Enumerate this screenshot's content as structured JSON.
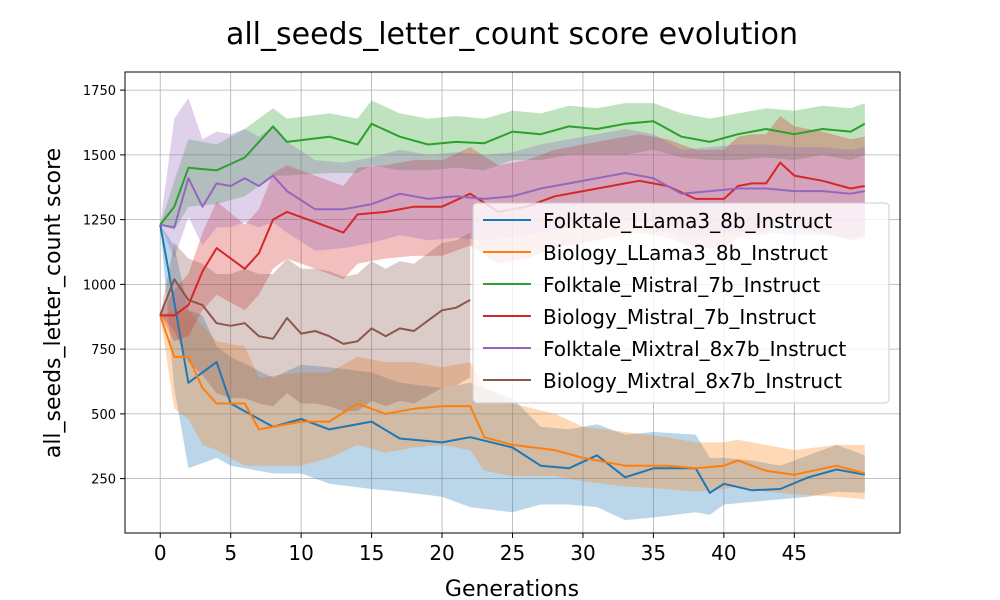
{
  "chart_data": {
    "type": "line",
    "title": "all_seeds_letter_count score evolution",
    "xlabel": "Generations",
    "ylabel": "all_seeds_letter_count score",
    "xlim": [
      -2.5,
      52.5
    ],
    "ylim": [
      40,
      1820
    ],
    "xticks": [
      0,
      5,
      10,
      15,
      20,
      25,
      30,
      35,
      40,
      45
    ],
    "yticks": [
      250,
      500,
      750,
      1000,
      1250,
      1500,
      1750
    ],
    "grid": true,
    "legend_position": "center-right",
    "band_opacity": 0.3,
    "series": [
      {
        "name": "Folktale_LLama3_8b_Instruct",
        "color": "#1f77b4",
        "x": [
          0,
          1,
          2,
          3,
          4,
          5,
          8,
          10,
          12,
          15,
          17,
          20,
          22,
          25,
          27,
          29,
          31,
          33,
          35,
          38,
          39,
          40,
          42,
          44,
          46,
          48,
          50
        ],
        "y": [
          1230,
          930,
          620,
          660,
          700,
          540,
          450,
          480,
          440,
          470,
          405,
          390,
          410,
          370,
          300,
          290,
          340,
          255,
          290,
          290,
          195,
          230,
          205,
          210,
          255,
          285,
          265
        ],
        "lower": [
          1230,
          600,
          290,
          310,
          330,
          300,
          270,
          270,
          230,
          210,
          200,
          180,
          140,
          120,
          150,
          150,
          140,
          90,
          100,
          120,
          110,
          150,
          160,
          170,
          180,
          200,
          195
        ],
        "upper": [
          1230,
          1150,
          900,
          880,
          760,
          720,
          640,
          690,
          680,
          660,
          620,
          600,
          620,
          560,
          450,
          440,
          460,
          420,
          430,
          420,
          330,
          330,
          320,
          300,
          340,
          380,
          340
        ]
      },
      {
        "name": "Biology_LLama3_8b_Instruct",
        "color": "#ff7f0e",
        "x": [
          0,
          1,
          2,
          3,
          4,
          6,
          7,
          10,
          12,
          14,
          16,
          18,
          20,
          22,
          23,
          25,
          28,
          30,
          33,
          36,
          38,
          40,
          41,
          43,
          45,
          48,
          50
        ],
        "y": [
          880,
          720,
          720,
          600,
          540,
          540,
          440,
          470,
          470,
          540,
          500,
          520,
          530,
          530,
          410,
          380,
          360,
          330,
          300,
          300,
          290,
          300,
          320,
          280,
          265,
          300,
          270
        ],
        "lower": [
          880,
          520,
          480,
          380,
          360,
          300,
          300,
          300,
          330,
          380,
          350,
          370,
          380,
          360,
          280,
          260,
          260,
          240,
          220,
          210,
          200,
          210,
          220,
          200,
          190,
          180,
          170
        ],
        "upper": [
          880,
          900,
          900,
          840,
          780,
          760,
          640,
          660,
          660,
          720,
          700,
          700,
          680,
          700,
          600,
          540,
          500,
          450,
          430,
          410,
          390,
          390,
          400,
          380,
          360,
          380,
          380
        ]
      },
      {
        "name": "Folktale_Mistral_7b_Instruct",
        "color": "#2ca02c",
        "x": [
          0,
          1,
          2,
          4,
          6,
          8,
          9,
          12,
          14,
          15,
          17,
          19,
          21,
          23,
          25,
          27,
          29,
          31,
          33,
          35,
          37,
          39,
          41,
          43,
          45,
          47,
          49,
          50
        ],
        "y": [
          1230,
          1300,
          1450,
          1440,
          1490,
          1610,
          1550,
          1570,
          1540,
          1620,
          1570,
          1540,
          1550,
          1545,
          1590,
          1580,
          1610,
          1600,
          1620,
          1630,
          1570,
          1550,
          1580,
          1600,
          1580,
          1600,
          1590,
          1620
        ],
        "lower": [
          1230,
          1210,
          1300,
          1310,
          1340,
          1420,
          1420,
          1430,
          1430,
          1460,
          1440,
          1440,
          1450,
          1440,
          1480,
          1480,
          1500,
          1500,
          1500,
          1520,
          1490,
          1480,
          1480,
          1490,
          1480,
          1500,
          1480,
          1500
        ],
        "upper": [
          1230,
          1400,
          1560,
          1540,
          1600,
          1680,
          1640,
          1660,
          1640,
          1710,
          1660,
          1640,
          1650,
          1640,
          1670,
          1660,
          1690,
          1680,
          1700,
          1700,
          1660,
          1640,
          1660,
          1680,
          1670,
          1690,
          1680,
          1700
        ]
      },
      {
        "name": "Biology_Mistral_7b_Instruct",
        "color": "#d62728",
        "x": [
          0,
          1,
          2,
          3,
          4,
          6,
          7,
          8,
          9,
          11,
          13,
          14,
          16,
          18,
          20,
          22,
          24,
          26,
          28,
          30,
          32,
          34,
          36,
          38,
          40,
          41,
          42,
          43,
          44,
          45,
          47,
          49,
          50
        ],
        "y": [
          880,
          880,
          920,
          1050,
          1140,
          1060,
          1120,
          1250,
          1280,
          1240,
          1200,
          1270,
          1280,
          1300,
          1300,
          1350,
          1280,
          1300,
          1340,
          1360,
          1380,
          1400,
          1380,
          1330,
          1330,
          1380,
          1390,
          1390,
          1470,
          1420,
          1400,
          1370,
          1380
        ],
        "lower": [
          880,
          780,
          800,
          900,
          960,
          900,
          960,
          1060,
          1100,
          1060,
          1020,
          1080,
          1100,
          1110,
          1110,
          1150,
          1080,
          1100,
          1140,
          1160,
          1180,
          1200,
          1180,
          1140,
          1140,
          1180,
          1190,
          1190,
          1260,
          1220,
          1200,
          1170,
          1180
        ],
        "upper": [
          880,
          980,
          1040,
          1200,
          1320,
          1230,
          1290,
          1430,
          1460,
          1420,
          1380,
          1450,
          1460,
          1480,
          1480,
          1530,
          1460,
          1480,
          1520,
          1540,
          1560,
          1580,
          1560,
          1520,
          1520,
          1570,
          1580,
          1580,
          1650,
          1610,
          1590,
          1560,
          1570
        ]
      },
      {
        "name": "Folktale_Mixtral_8x7b_Instruct",
        "color": "#9467bd",
        "x": [
          0,
          1,
          2,
          3,
          4,
          5,
          6,
          7,
          8,
          9,
          11,
          13,
          15,
          17,
          19,
          21,
          23,
          25,
          27,
          29,
          31,
          33,
          35,
          37,
          39,
          41,
          43,
          45,
          47,
          49,
          50
        ],
        "y": [
          1230,
          1220,
          1410,
          1300,
          1390,
          1380,
          1410,
          1380,
          1420,
          1360,
          1290,
          1290,
          1310,
          1350,
          1330,
          1340,
          1330,
          1340,
          1370,
          1390,
          1410,
          1430,
          1410,
          1350,
          1360,
          1370,
          1370,
          1360,
          1360,
          1350,
          1360
        ],
        "lower": [
          1230,
          1100,
          1260,
          1150,
          1220,
          1220,
          1240,
          1220,
          1240,
          1200,
          1130,
          1140,
          1160,
          1190,
          1170,
          1180,
          1170,
          1180,
          1200,
          1220,
          1240,
          1250,
          1230,
          1180,
          1190,
          1200,
          1200,
          1190,
          1190,
          1180,
          1190
        ],
        "upper": [
          1230,
          1640,
          1720,
          1560,
          1590,
          1580,
          1600,
          1570,
          1610,
          1550,
          1480,
          1470,
          1490,
          1520,
          1500,
          1510,
          1500,
          1510,
          1540,
          1560,
          1580,
          1600,
          1580,
          1520,
          1530,
          1540,
          1540,
          1530,
          1530,
          1520,
          1530
        ]
      },
      {
        "name": "Biology_Mixtral_8x7b_Instruct",
        "color": "#8c564b",
        "x": [
          0,
          1,
          2,
          3,
          4,
          5,
          6,
          7,
          8,
          9,
          10,
          11,
          12,
          13,
          14,
          15,
          16,
          17,
          18,
          19,
          20,
          21,
          22
        ],
        "y": [
          880,
          1020,
          940,
          920,
          850,
          840,
          850,
          800,
          790,
          870,
          810,
          820,
          800,
          770,
          780,
          830,
          800,
          830,
          820,
          860,
          900,
          910,
          940
        ],
        "lower": [
          880,
          820,
          700,
          650,
          580,
          560,
          560,
          540,
          530,
          580,
          540,
          540,
          530,
          510,
          510,
          550,
          530,
          550,
          540,
          570,
          600,
          610,
          640
        ],
        "upper": [
          880,
          1160,
          1100,
          1080,
          1040,
          1040,
          1060,
          1040,
          1040,
          1100,
          1060,
          1060,
          1050,
          1030,
          1040,
          1090,
          1060,
          1090,
          1080,
          1120,
          1160,
          1170,
          1200
        ]
      }
    ]
  }
}
